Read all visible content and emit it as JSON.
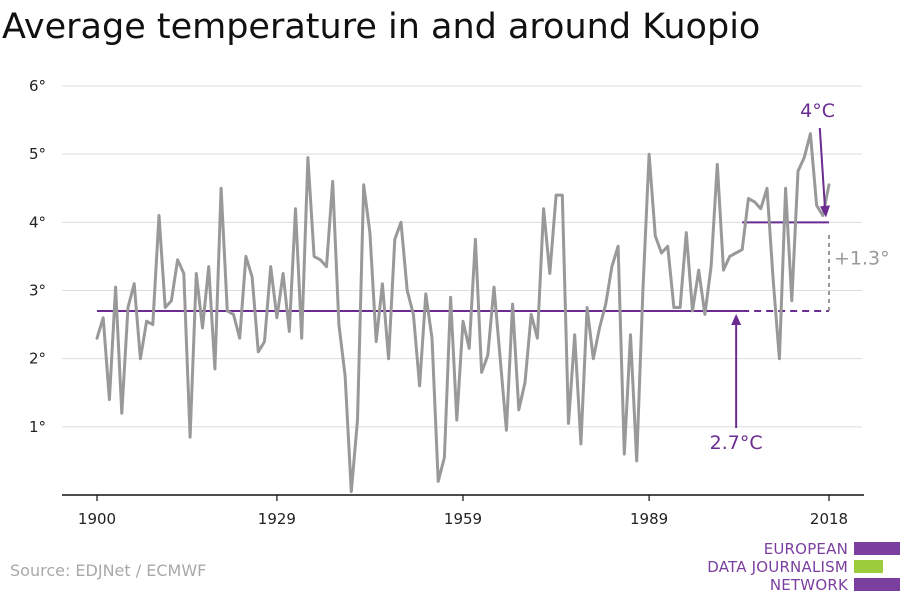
{
  "title": "Average temperature in and around Kuopio",
  "source": "Source: EDJNet / ECMWF",
  "logo": {
    "line1": "EUROPEAN",
    "line2": "DATA JOURNALISM",
    "line3": "NETWORK",
    "colors": [
      "#7b3fa0",
      "#9ccc3c",
      "#7b3fa0"
    ]
  },
  "colors": {
    "series": "#999999",
    "reference": "#6a2c91",
    "difference": "#999999",
    "axis": "#111111",
    "grid": "#dddddd"
  },
  "chart_data": {
    "type": "line",
    "xlim": [
      1900,
      2018
    ],
    "ylim": [
      0,
      6
    ],
    "xticks": [
      1900,
      1929,
      1959,
      1989,
      2018
    ],
    "yticks": [
      1,
      2,
      3,
      4,
      5,
      6
    ],
    "ytick_suffix": "°",
    "grid": true,
    "series": [
      {
        "x": [
          1900,
          1901,
          1902,
          1903,
          1904,
          1905,
          1906,
          1907,
          1908,
          1909,
          1910,
          1911,
          1912,
          1913,
          1914,
          1915,
          1916,
          1917,
          1918,
          1919,
          1920,
          1921,
          1922,
          1923,
          1924,
          1925,
          1926,
          1927,
          1928,
          1929,
          1930,
          1931,
          1932,
          1933,
          1934,
          1935,
          1936,
          1937,
          1938,
          1939,
          1940,
          1941,
          1942,
          1943,
          1944,
          1945,
          1946,
          1947,
          1948,
          1949,
          1950,
          1951,
          1952,
          1953,
          1954,
          1955,
          1956,
          1957,
          1958,
          1959,
          1960,
          1961,
          1962,
          1963,
          1964,
          1965,
          1966,
          1967,
          1968,
          1969,
          1970,
          1971,
          1972,
          1973,
          1974,
          1975,
          1976,
          1977,
          1978,
          1979,
          1980,
          1981,
          1982,
          1983,
          1984,
          1985,
          1986,
          1987,
          1988,
          1989,
          1990,
          1991,
          1992,
          1993,
          1994,
          1995,
          1996,
          1997,
          1998,
          1999,
          2000,
          2001,
          2002,
          2003,
          2004,
          2005,
          2006,
          2007,
          2008,
          2009,
          2010,
          2011,
          2012,
          2013,
          2014,
          2015,
          2016,
          2017,
          2018
        ],
        "y": [
          2.3,
          2.6,
          1.4,
          3.05,
          1.2,
          2.75,
          3.1,
          2.0,
          2.55,
          2.5,
          4.1,
          2.75,
          2.85,
          3.45,
          3.25,
          0.85,
          3.25,
          2.45,
          3.35,
          1.85,
          4.5,
          2.7,
          2.65,
          2.3,
          3.5,
          3.2,
          2.1,
          2.25,
          3.35,
          2.6,
          3.25,
          2.4,
          4.2,
          2.3,
          4.95,
          3.5,
          3.45,
          3.35,
          4.6,
          2.5,
          1.75,
          0.05,
          1.1,
          4.55,
          3.85,
          2.25,
          3.1,
          2.0,
          3.75,
          4.0,
          3.0,
          2.65,
          1.6,
          2.95,
          2.3,
          0.2,
          0.55,
          2.9,
          1.1,
          2.55,
          2.15,
          3.75,
          1.8,
          2.05,
          3.05,
          2.0,
          0.95,
          2.8,
          1.25,
          1.65,
          2.65,
          2.3,
          4.2,
          3.25,
          4.4,
          4.4,
          1.05,
          2.35,
          0.75,
          2.75,
          2.0,
          2.45,
          2.8,
          3.35,
          3.65,
          0.6,
          2.35,
          0.5,
          3.0,
          5.0,
          3.8,
          3.55,
          3.65,
          2.75,
          2.75,
          3.85,
          2.7,
          3.3,
          2.65,
          3.35,
          4.85,
          3.3,
          3.5,
          3.55,
          3.6,
          4.35,
          4.3,
          4.2,
          4.5,
          3.15,
          2.0,
          4.5,
          2.85,
          4.75,
          4.95,
          5.3,
          4.25,
          4.1,
          4.55
        ]
      }
    ],
    "reference_lines": [
      {
        "value": 2.7,
        "x_start": 1900,
        "x_end": 2004,
        "dashed_until": 2018,
        "label": "2.7°C"
      },
      {
        "value": 4.0,
        "x_start": 2004,
        "x_end": 2018,
        "label": "4°C"
      }
    ],
    "difference": {
      "x": 2018,
      "from": 2.7,
      "to": 4.0,
      "label": "+1.3°"
    }
  }
}
